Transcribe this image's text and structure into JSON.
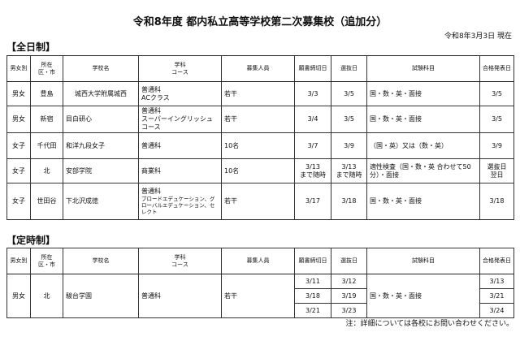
{
  "title": "令和8年度 都内私立高等学校第二次募集校（追加分）",
  "as_of": "令和8年3月3日 現在",
  "headers": [
    "男女別",
    "所在\n区・市",
    "学校名",
    "学科\nコース",
    "募集人員",
    "願書締切日",
    "選抜日",
    "試験科目",
    "合格発表日"
  ],
  "fulltime": {
    "label": "【全日制】",
    "rows": [
      {
        "gender": "男女",
        "area": "豊島",
        "school": "城西大学附属城西",
        "dept": "普通科",
        "course": "ACクラス",
        "capacity": "若干",
        "deadline": "3/3",
        "deadline2": "",
        "selection": "3/5",
        "selection2": "",
        "subjects": "国・数・英・面接",
        "result": "3/5",
        "result2": ""
      },
      {
        "gender": "男女",
        "area": "新宿",
        "school": "目白研心",
        "dept": "普通科",
        "course": "スーパーイングリッシュコース",
        "capacity": "若干",
        "deadline": "3/4",
        "deadline2": "",
        "selection": "3/5",
        "selection2": "",
        "subjects": "国・数・英・面接",
        "result": "3/5",
        "result2": ""
      },
      {
        "gender": "女子",
        "area": "千代田",
        "school": "和洋九段女子",
        "dept": "普通科",
        "course": "",
        "capacity": "10名",
        "deadline": "3/7",
        "deadline2": "",
        "selection": "3/9",
        "selection2": "",
        "subjects": "（国・英）又は（数・英）",
        "result": "3/9",
        "result2": ""
      },
      {
        "gender": "女子",
        "area": "北",
        "school": "安部学院",
        "dept": "商業科",
        "course": "",
        "capacity": "10名",
        "deadline": "3/13",
        "deadline2": "まで随時",
        "selection": "3/13",
        "selection2": "まで随時",
        "subjects": "適性検査（国・数・英 合わせて50分）・面接",
        "result": "選抜日",
        "result2": "翌日"
      },
      {
        "gender": "女子",
        "area": "世田谷",
        "school": "下北沢成徳",
        "dept": "普通科",
        "course": "ブロードエデュケーション、グローバルエデュケーション、セレクト",
        "capacity": "若干",
        "deadline": "3/17",
        "deadline2": "",
        "selection": "3/18",
        "selection2": "",
        "subjects": "国・数・英・面接",
        "result": "3/18",
        "result2": ""
      }
    ]
  },
  "parttime": {
    "label": "【定時制】",
    "row": {
      "gender": "男女",
      "area": "北",
      "school": "駿台学園",
      "dept": "普通科",
      "capacity": "若干",
      "subjects": "国・数・英・面接",
      "rounds": [
        {
          "deadline": "3/11",
          "selection": "3/12",
          "result": "3/13"
        },
        {
          "deadline": "3/18",
          "selection": "3/19",
          "result": "3/21"
        },
        {
          "deadline": "3/21",
          "selection": "3/23",
          "result": "3/24"
        }
      ]
    }
  },
  "note": "注：詳細については各校にお問い合わせください。"
}
